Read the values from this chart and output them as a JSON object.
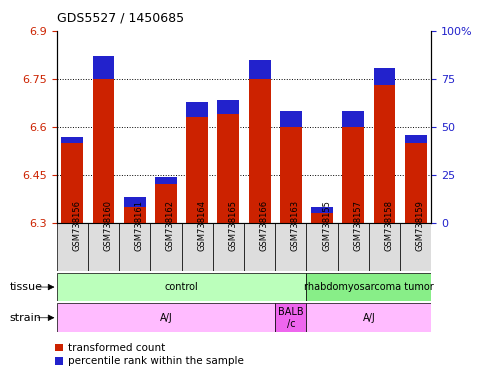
{
  "title": "GDS5527 / 1450685",
  "samples": [
    "GSM738156",
    "GSM738160",
    "GSM738161",
    "GSM738162",
    "GSM738164",
    "GSM738165",
    "GSM738166",
    "GSM738163",
    "GSM738155",
    "GSM738157",
    "GSM738158",
    "GSM738159"
  ],
  "transformed_counts": [
    6.55,
    6.75,
    6.35,
    6.42,
    6.63,
    6.64,
    6.75,
    6.6,
    6.33,
    6.6,
    6.73,
    6.55
  ],
  "percentile_ranks": [
    3,
    12,
    5,
    4,
    8,
    7,
    10,
    8,
    3,
    8,
    9,
    4
  ],
  "ymin": 6.3,
  "ymax": 6.9,
  "yticks": [
    6.3,
    6.45,
    6.6,
    6.75,
    6.9
  ],
  "right_yticks": [
    0,
    25,
    50,
    75,
    100
  ],
  "bar_color_red": "#cc2200",
  "bar_color_blue": "#2222cc",
  "tissue_groups": [
    {
      "label": "control",
      "start": 0,
      "end": 8,
      "color": "#bbffbb"
    },
    {
      "label": "rhabdomyosarcoma tumor",
      "start": 8,
      "end": 12,
      "color": "#88ee88"
    }
  ],
  "strain_groups": [
    {
      "label": "A/J",
      "start": 0,
      "end": 7,
      "color": "#ffbbff"
    },
    {
      "label": "BALB\n/c",
      "start": 7,
      "end": 8,
      "color": "#ee66ee"
    },
    {
      "label": "A/J",
      "start": 8,
      "end": 12,
      "color": "#ffbbff"
    }
  ],
  "legend_items": [
    {
      "color": "#cc2200",
      "label": "transformed count"
    },
    {
      "color": "#2222cc",
      "label": "percentile rank within the sample"
    }
  ],
  "bar_width": 0.7,
  "tissue_label": "tissue",
  "strain_label": "strain",
  "tick_bg_color": "#dddddd",
  "grid_lines": [
    6.45,
    6.6,
    6.75
  ]
}
